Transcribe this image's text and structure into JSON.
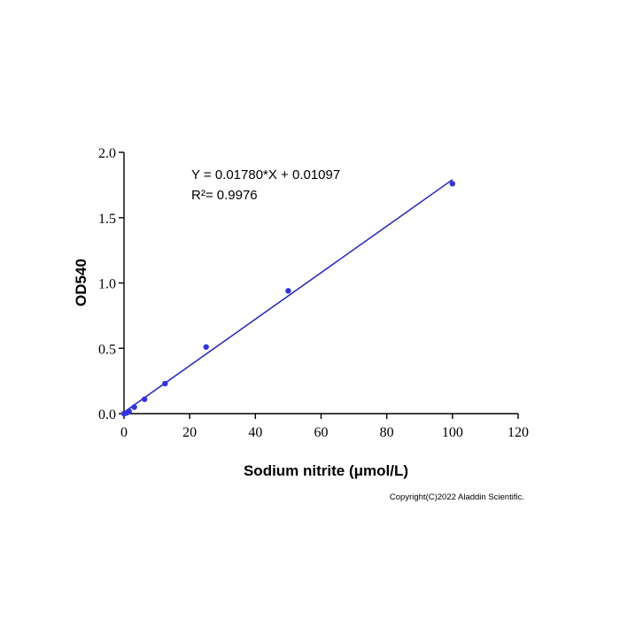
{
  "chart_data": {
    "type": "scatter",
    "title": "",
    "xlabel": "Sodium nitrite (μmol/L)",
    "ylabel": "OD540",
    "xlim": [
      0,
      120
    ],
    "ylim": [
      0,
      2.0
    ],
    "x_ticks": [
      0,
      20,
      40,
      60,
      80,
      100,
      120
    ],
    "x_tick_labels": [
      "0",
      "20",
      "40",
      "60",
      "80",
      "100",
      "120"
    ],
    "y_ticks": [
      0,
      0.5,
      1.0,
      1.5,
      2.0
    ],
    "y_tick_labels": [
      "0.0",
      "0.5",
      "1.0",
      "1.5",
      "2.0"
    ],
    "grid": false,
    "legend": "none",
    "series": [
      {
        "x": [
          0,
          0.78,
          1.56,
          3.125,
          6.25,
          12.5,
          25,
          50,
          100
        ],
        "y": [
          0.0,
          0.005,
          0.018,
          0.05,
          0.11,
          0.23,
          0.51,
          0.94,
          1.76
        ],
        "color": "#3333dd"
      }
    ],
    "fit_line": {
      "slope": 0.0178,
      "intercept": 0.01097,
      "x_range": [
        0,
        100
      ],
      "color": "#2424b8"
    },
    "annotations": {
      "equation": "Y = 0.01780*X + 0.01097",
      "r_squared": "R²= 0.9976"
    }
  },
  "copyright": "Copyright(C)2022 Aladdin Scientific."
}
